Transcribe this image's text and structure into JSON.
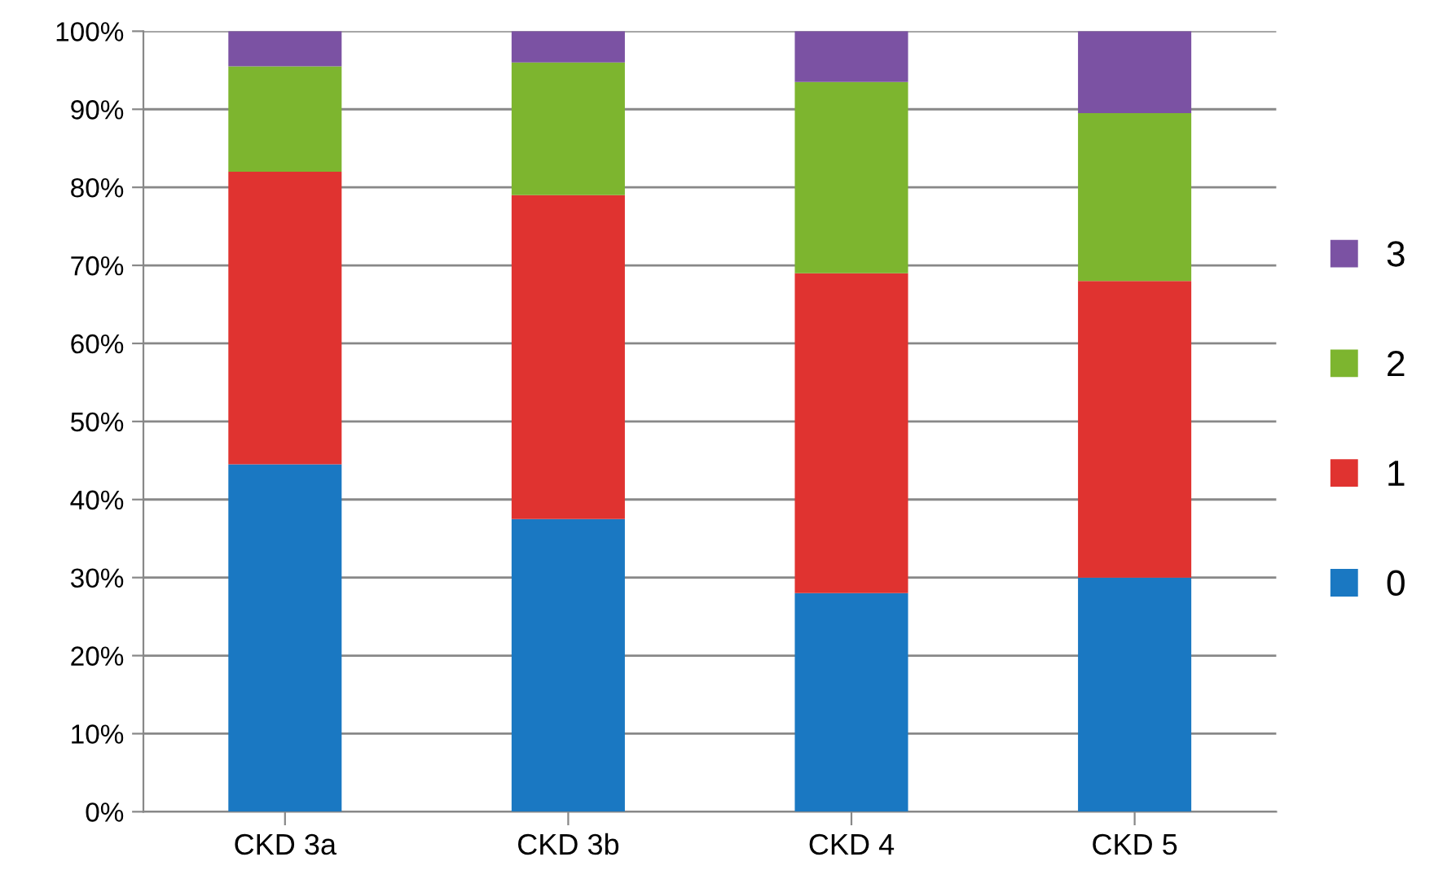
{
  "chart_data": {
    "type": "bar",
    "stacked": true,
    "categories": [
      "CKD 3a",
      "CKD 3b",
      "CKD 4",
      "CKD 5"
    ],
    "series": [
      {
        "name": "0",
        "color": "#1a78c2",
        "values": [
          44.5,
          37.5,
          28,
          30
        ]
      },
      {
        "name": "1",
        "color": "#e03330",
        "values": [
          37.5,
          41.5,
          41,
          38
        ]
      },
      {
        "name": "2",
        "color": "#7db52f",
        "values": [
          13.5,
          17,
          24.5,
          21.5
        ]
      },
      {
        "name": "3",
        "color": "#7b52a3",
        "values": [
          4.5,
          4,
          6.5,
          10.5
        ]
      }
    ],
    "ylim": [
      0,
      100
    ],
    "yticks": [
      {
        "value": 0,
        "label": "0%"
      },
      {
        "value": 10,
        "label": "10%"
      },
      {
        "value": 20,
        "label": "20%"
      },
      {
        "value": 30,
        "label": "30%"
      },
      {
        "value": 40,
        "label": "40%"
      },
      {
        "value": 50,
        "label": "50%"
      },
      {
        "value": 60,
        "label": "60%"
      },
      {
        "value": 70,
        "label": "70%"
      },
      {
        "value": 80,
        "label": "80%"
      },
      {
        "value": 90,
        "label": "90%"
      },
      {
        "value": 100,
        "label": "100%"
      }
    ],
    "grid": "y",
    "legend": "right"
  }
}
